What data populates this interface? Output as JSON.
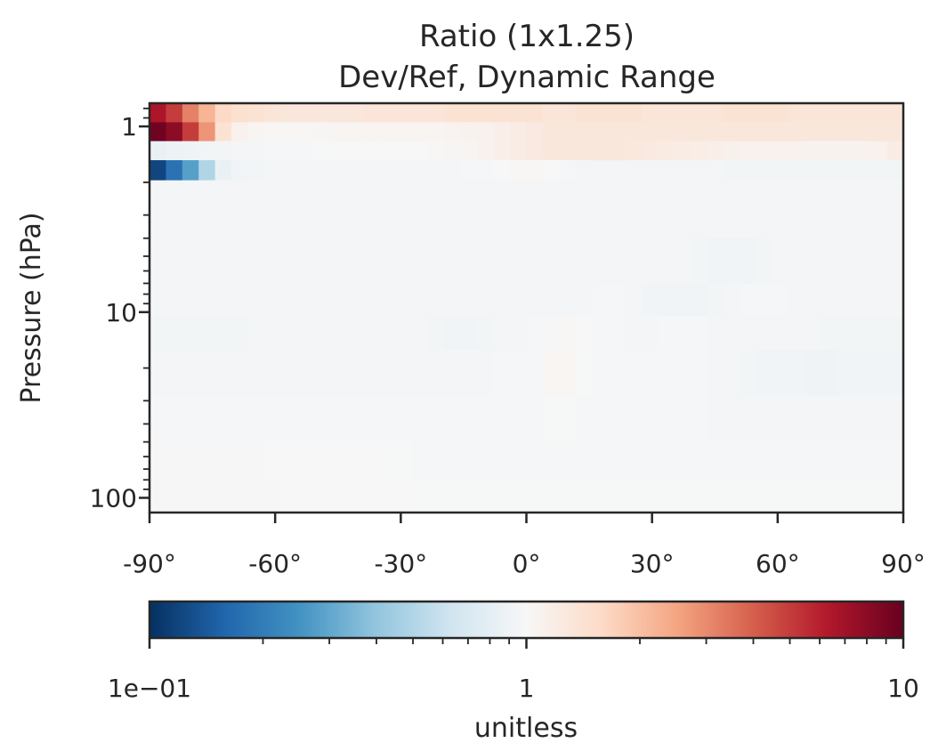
{
  "chart_data": {
    "type": "heatmap",
    "title": "Ratio (1x1.25)",
    "subtitle": "Dev/Ref, Dynamic Range",
    "xlabel": "",
    "ylabel": "Pressure (hPa)",
    "x_axis": {
      "range": [
        -90,
        90
      ],
      "ticks": [
        -90,
        -60,
        -30,
        0,
        30,
        60,
        90
      ],
      "tick_labels": [
        "-90°",
        "-60°",
        "-30°",
        "0°",
        "30°",
        "60°",
        "90°"
      ]
    },
    "y_axis": {
      "scale": "log",
      "inverted": true,
      "range": [
        0.75,
        120
      ],
      "ticks": [
        1,
        10,
        100
      ],
      "tick_labels": [
        "1",
        "10",
        "100"
      ]
    },
    "colorbar": {
      "label": "unitless",
      "scale": "log",
      "range": [
        0.1,
        10
      ],
      "ticks": [
        0.1,
        1,
        10
      ],
      "tick_labels": [
        "1e−01",
        "1",
        "10"
      ],
      "colormap": "RdBu_r",
      "colors": [
        "#053061",
        "#2166ac",
        "#4393c3",
        "#92c5de",
        "#d1e5f0",
        "#f7f7f7",
        "#fddbc7",
        "#f4a582",
        "#d6604d",
        "#b2182b",
        "#67001f"
      ]
    },
    "rows": [
      {
        "p_top": 0.75,
        "p_bot": 0.95,
        "values": [
          6.5,
          5.0,
          3.2,
          2.2,
          1.6,
          1.45,
          1.4,
          1.35,
          1.3,
          1.3,
          1.3,
          1.3,
          1.3,
          1.35,
          1.35,
          1.35,
          1.35,
          1.35,
          1.4,
          1.4,
          1.4,
          1.4,
          1.4,
          1.4,
          1.35,
          1.35,
          1.4,
          1.4,
          1.4,
          1.4,
          1.35,
          1.35,
          1.35,
          1.35,
          1.35,
          1.4,
          1.4,
          1.4,
          1.4,
          1.35,
          1.35,
          1.35,
          1.35,
          1.35,
          1.35,
          1.35
        ]
      },
      {
        "p_top": 0.95,
        "p_bot": 1.2,
        "values": [
          9.5,
          8.0,
          5.0,
          2.8,
          1.4,
          1.1,
          1.05,
          1.02,
          1.02,
          1.02,
          1.03,
          1.05,
          1.05,
          1.05,
          1.05,
          1.05,
          1.05,
          1.05,
          1.07,
          1.08,
          1.1,
          1.15,
          1.2,
          1.25,
          1.3,
          1.3,
          1.3,
          1.3,
          1.3,
          1.3,
          1.3,
          1.3,
          1.3,
          1.3,
          1.3,
          1.3,
          1.3,
          1.3,
          1.3,
          1.3,
          1.3,
          1.3,
          1.3,
          1.3,
          1.3,
          1.3
        ]
      },
      {
        "p_top": 1.2,
        "p_bot": 1.52,
        "values": [
          0.85,
          0.88,
          0.9,
          0.92,
          0.94,
          0.95,
          0.96,
          0.97,
          0.98,
          0.98,
          0.99,
          1.0,
          1.0,
          1.0,
          1.0,
          1.0,
          1.0,
          1.02,
          1.03,
          1.05,
          1.1,
          1.15,
          1.2,
          1.25,
          1.3,
          1.3,
          1.3,
          1.3,
          1.3,
          1.28,
          1.25,
          1.22,
          1.2,
          1.18,
          1.15,
          1.12,
          1.1,
          1.1,
          1.1,
          1.1,
          1.08,
          1.08,
          1.08,
          1.08,
          1.1,
          1.2
        ]
      },
      {
        "p_top": 1.52,
        "p_bot": 1.95,
        "values": [
          0.12,
          0.18,
          0.28,
          0.5,
          0.85,
          0.93,
          0.94,
          0.95,
          0.95,
          0.95,
          0.95,
          0.95,
          0.95,
          0.95,
          0.95,
          0.95,
          0.95,
          0.95,
          0.96,
          0.97,
          0.98,
          1.0,
          1.02,
          1.02,
          1.0,
          0.98,
          0.96,
          0.95,
          0.95,
          0.95,
          0.95,
          0.95,
          0.95,
          0.95,
          0.95,
          0.94,
          0.94,
          0.94,
          0.94,
          0.94,
          0.94,
          0.94,
          0.94,
          0.94,
          0.94,
          0.94
        ]
      },
      {
        "p_top": 1.95,
        "p_bot": 4.0,
        "values": [
          0.95,
          0.95,
          0.95,
          0.95,
          0.95,
          0.95,
          0.95,
          0.95,
          0.95,
          0.95,
          0.95,
          0.95,
          0.95,
          0.95,
          0.95,
          0.95,
          0.95,
          0.95,
          0.95,
          0.95,
          0.95,
          0.95,
          0.95,
          0.95,
          0.95,
          0.95,
          0.95,
          0.95,
          0.95,
          0.95,
          0.95,
          0.95,
          0.95,
          0.95,
          0.95,
          0.95,
          0.95,
          0.95,
          0.95,
          0.95,
          0.95,
          0.95,
          0.95,
          0.95,
          0.95,
          0.95
        ]
      },
      {
        "p_top": 4.0,
        "p_bot": 7.0,
        "values": [
          0.95,
          0.95,
          0.95,
          0.95,
          0.95,
          0.95,
          0.95,
          0.95,
          0.95,
          0.95,
          0.95,
          0.95,
          0.95,
          0.95,
          0.95,
          0.95,
          0.95,
          0.95,
          0.95,
          0.95,
          0.95,
          0.95,
          0.95,
          0.95,
          0.95,
          0.95,
          0.95,
          0.95,
          0.95,
          0.95,
          0.95,
          0.95,
          0.95,
          0.94,
          0.92,
          0.92,
          0.93,
          0.94,
          0.95,
          0.95,
          0.95,
          0.95,
          0.95,
          0.95,
          0.95,
          0.95
        ]
      },
      {
        "p_top": 7.0,
        "p_bot": 10.5,
        "values": [
          0.96,
          0.96,
          0.96,
          0.96,
          0.96,
          0.96,
          0.96,
          0.96,
          0.96,
          0.96,
          0.96,
          0.96,
          0.96,
          0.96,
          0.96,
          0.96,
          0.96,
          0.96,
          0.96,
          0.96,
          0.96,
          0.96,
          0.96,
          0.96,
          0.96,
          0.96,
          0.96,
          0.97,
          0.97,
          0.95,
          0.93,
          0.92,
          0.92,
          0.93,
          0.94,
          0.95,
          0.97,
          0.98,
          0.97,
          0.96,
          0.95,
          0.95,
          0.95,
          0.95,
          0.95,
          0.95
        ]
      },
      {
        "p_top": 10.5,
        "p_bot": 16.0,
        "values": [
          0.94,
          0.94,
          0.94,
          0.94,
          0.94,
          0.94,
          0.95,
          0.95,
          0.95,
          0.95,
          0.95,
          0.95,
          0.95,
          0.95,
          0.95,
          0.95,
          0.95,
          0.94,
          0.93,
          0.93,
          0.94,
          0.95,
          0.96,
          0.98,
          1.01,
          1.02,
          1.0,
          0.98,
          0.97,
          0.96,
          0.96,
          0.97,
          0.98,
          0.97,
          0.96,
          0.96,
          0.96,
          0.95,
          0.95,
          0.95,
          0.95,
          0.94,
          0.94,
          0.94,
          0.94,
          0.94
        ]
      },
      {
        "p_top": 16.0,
        "p_bot": 28.0,
        "values": [
          0.96,
          0.96,
          0.96,
          0.96,
          0.96,
          0.96,
          0.96,
          0.96,
          0.96,
          0.96,
          0.96,
          0.96,
          0.96,
          0.96,
          0.96,
          0.96,
          0.96,
          0.96,
          0.96,
          0.96,
          0.96,
          0.97,
          0.97,
          0.98,
          1.04,
          1.04,
          0.99,
          0.98,
          0.97,
          0.97,
          0.97,
          0.98,
          0.98,
          0.97,
          0.96,
          0.95,
          0.94,
          0.93,
          0.92,
          0.92,
          0.91,
          0.91,
          0.92,
          0.92,
          0.93,
          0.93
        ]
      },
      {
        "p_top": 28.0,
        "p_bot": 50.0,
        "values": [
          0.98,
          0.98,
          0.98,
          0.98,
          0.98,
          0.98,
          0.98,
          0.98,
          0.98,
          0.98,
          0.98,
          0.98,
          0.98,
          0.98,
          0.98,
          0.98,
          0.98,
          0.98,
          0.98,
          0.98,
          0.98,
          0.98,
          0.98,
          0.98,
          0.99,
          0.99,
          0.98,
          0.98,
          0.97,
          0.97,
          0.97,
          0.97,
          0.97,
          0.97,
          0.96,
          0.96,
          0.96,
          0.96,
          0.96,
          0.95,
          0.95,
          0.95,
          0.95,
          0.95,
          0.95,
          0.96
        ]
      },
      {
        "p_top": 50.0,
        "p_bot": 80.0,
        "values": [
          1.01,
          1.01,
          1.01,
          1.01,
          1.01,
          1.01,
          1.01,
          1.0,
          1.0,
          1.0,
          1.0,
          1.0,
          1.0,
          1.0,
          0.99,
          0.99,
          0.98,
          0.98,
          0.98,
          0.98,
          0.98,
          0.98,
          0.98,
          0.98,
          0.98,
          0.98,
          0.98,
          0.98,
          0.98,
          0.98,
          0.98,
          0.98,
          0.98,
          0.98,
          0.98,
          0.98,
          0.98,
          0.98,
          0.98,
          0.98,
          0.98,
          0.98,
          0.98,
          0.98,
          0.98,
          0.98
        ]
      },
      {
        "p_top": 80.0,
        "p_bot": 120.0,
        "values": [
          1.01,
          1.01,
          1.01,
          1.01,
          1.01,
          1.01,
          1.01,
          1.01,
          1.0,
          1.0,
          1.0,
          1.0,
          1.0,
          1.0,
          1.0,
          1.0,
          0.99,
          0.99,
          0.99,
          0.99,
          0.99,
          0.99,
          0.99,
          0.99,
          0.99,
          0.99,
          0.99,
          0.99,
          0.99,
          0.99,
          0.99,
          0.99,
          0.99,
          0.99,
          0.99,
          0.99,
          0.99,
          0.99,
          0.99,
          0.99,
          0.99,
          0.99,
          0.99,
          0.99,
          0.99,
          0.99
        ]
      }
    ]
  }
}
